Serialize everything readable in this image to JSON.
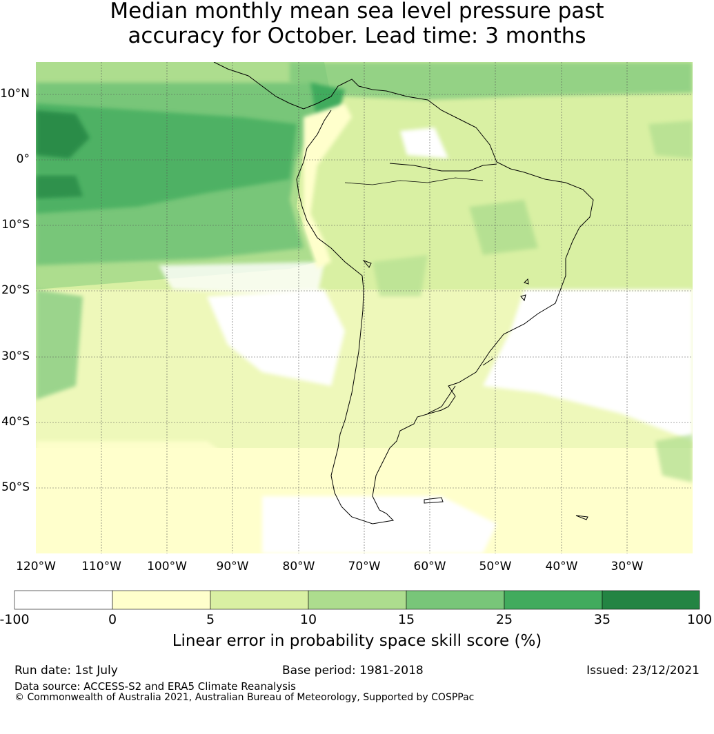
{
  "title": {
    "line1": "Median monthly mean sea level pressure past",
    "line2": "accuracy for October. Lead time: 3 months"
  },
  "axes": {
    "lon_labels": [
      "120°W",
      "110°W",
      "100°W",
      "90°W",
      "80°W",
      "70°W",
      "60°W",
      "50°W",
      "40°W",
      "30°W"
    ],
    "lat_labels": [
      "10°N",
      "0°",
      "10°S",
      "20°S",
      "30°S",
      "40°S",
      "50°S"
    ]
  },
  "colorbar": {
    "ticks": [
      "-100",
      "0",
      "5",
      "10",
      "15",
      "25",
      "35",
      "100"
    ],
    "colors": [
      "#ffffff",
      "#ffffcc",
      "#d9f0a3",
      "#addd8e",
      "#78c679",
      "#41ab5d",
      "#238443"
    ],
    "label": "Linear error in probability space skill score (%)"
  },
  "footer": {
    "run_date": "Run date: 1st July",
    "base_period": "Base period: 1981-2018",
    "issued": "Issued: 23/12/2021",
    "data_source": "Data source: ACCESS-S2 and ERA5 Climate Reanalysis",
    "copyright": "© Commonwealth of Australia 2021, Australian Bureau of Meteorology, Supported by COSPPac"
  },
  "map_data": {
    "colors": {
      "land_outline": "#000000",
      "grid": "#555555"
    }
  }
}
